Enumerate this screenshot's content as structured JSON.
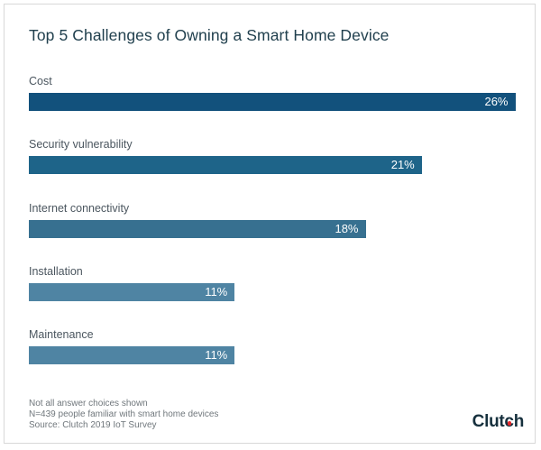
{
  "title": "Top 5 Challenges of Owning a Smart Home Device",
  "chart_data": {
    "type": "bar",
    "orientation": "horizontal",
    "title": "Top 5 Challenges of Owning a Smart Home Device",
    "categories": [
      "Cost",
      "Security vulnerability",
      "Internet connectivity",
      "Installation",
      "Maintenance"
    ],
    "values": [
      26,
      21,
      18,
      11,
      11
    ],
    "value_labels": [
      "26%",
      "21%",
      "18%",
      "11%",
      "11%"
    ],
    "bar_colors": [
      "#12517c",
      "#1e6489",
      "#377090",
      "#4f84a3",
      "#4f84a3"
    ],
    "xlabel": "",
    "ylabel": "",
    "xlim": [
      0,
      27
    ],
    "grid": false,
    "legend": false,
    "data_label_position": "inside-end",
    "data_label_color": "#ffffff"
  },
  "footer": {
    "notes": [
      "Not all answer choices shown",
      "N=439 people familiar with smart home devices",
      "Source: Clutch 2019 IoT Survey"
    ],
    "logo": {
      "part_before": "Clut",
      "dot_letter": "c",
      "part_after": "h",
      "full_text": "Clutch",
      "text_color": "#16303d",
      "dot_color": "#e52528"
    }
  }
}
